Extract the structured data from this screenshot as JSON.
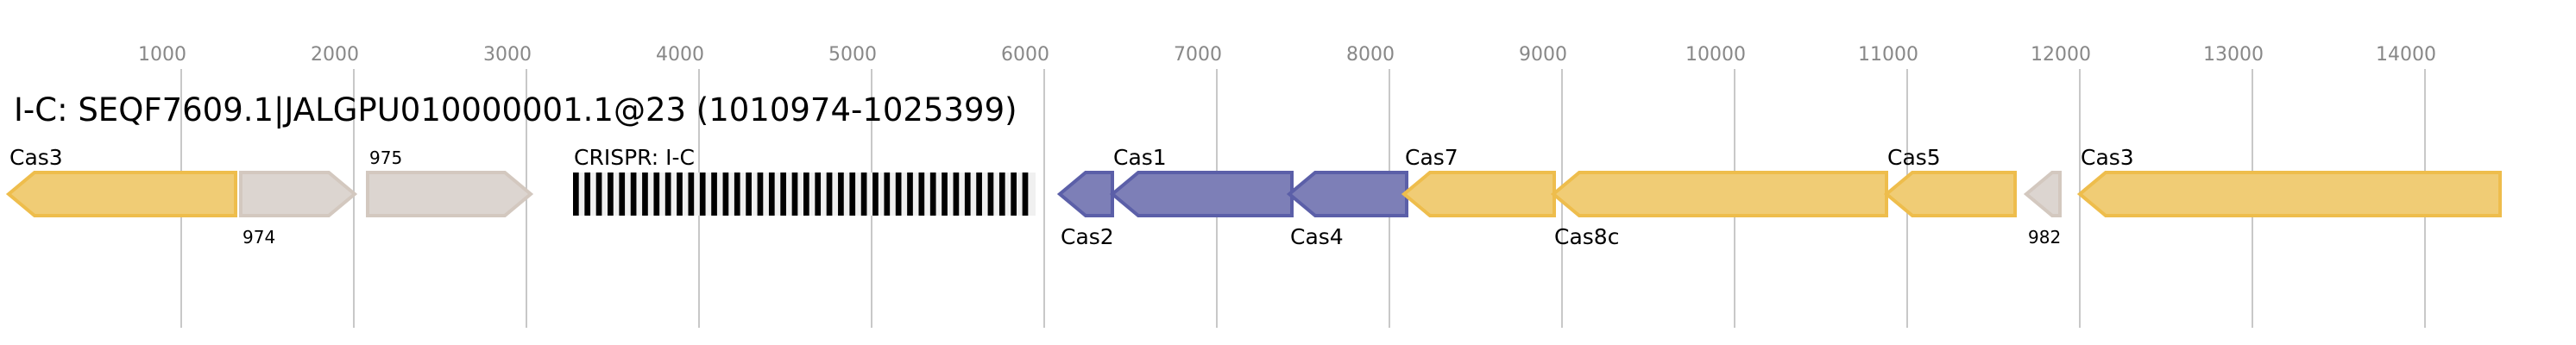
{
  "title": "I-C: SEQF7609.1|JALGPU010000001.1@23 (1010974-1025399)",
  "chart_data": {
    "type": "gene-map",
    "axis_ticks": [
      1000,
      2000,
      3000,
      4000,
      5000,
      6000,
      7000,
      8000,
      9000,
      10000,
      11000,
      12000,
      13000,
      14000
    ],
    "grid": true,
    "colors": {
      "cas": {
        "fill": "#f0cc75",
        "stroke": "#eebd4c"
      },
      "cas-adapt": {
        "fill": "#7d7fb7",
        "stroke": "#5b5fa8"
      },
      "other": {
        "fill": "#dcd5d0",
        "stroke": "#d3c8bf"
      },
      "crispr": {
        "fill": "#000000",
        "bg": "#f0f0f0"
      }
    },
    "features": [
      {
        "label": "Cas3",
        "start": 0,
        "end": 1315,
        "strand": "-",
        "kind": "cas",
        "label_pos": "above"
      },
      {
        "label": "974",
        "start": 1345,
        "end": 2005,
        "strand": "+",
        "kind": "other",
        "label_pos": "below"
      },
      {
        "label": "975",
        "start": 2080,
        "end": 3025,
        "strand": "+",
        "kind": "other",
        "label_pos": "above"
      },
      {
        "label": "CRISPR: I-C",
        "start": 3270,
        "end": 5950,
        "strand": "",
        "kind": "crispr",
        "label_pos": "above"
      },
      {
        "label": "Cas2",
        "start": 6090,
        "end": 6395,
        "strand": "-",
        "kind": "cas-adapt",
        "label_pos": "below"
      },
      {
        "label": "Cas1",
        "start": 6395,
        "end": 7435,
        "strand": "-",
        "kind": "cas-adapt",
        "label_pos": "above"
      },
      {
        "label": "Cas4",
        "start": 7420,
        "end": 8100,
        "strand": "-",
        "kind": "cas-adapt",
        "label_pos": "below"
      },
      {
        "label": "Cas7",
        "start": 8085,
        "end": 8955,
        "strand": "-",
        "kind": "cas",
        "label_pos": "above"
      },
      {
        "label": "Cas8c",
        "start": 8950,
        "end": 10880,
        "strand": "-",
        "kind": "cas",
        "label_pos": "below"
      },
      {
        "label": "Cas5",
        "start": 10880,
        "end": 11625,
        "strand": "-",
        "kind": "cas",
        "label_pos": "above"
      },
      {
        "label": "982",
        "start": 11690,
        "end": 11885,
        "strand": "-",
        "kind": "other",
        "label_pos": "below"
      },
      {
        "label": "Cas3",
        "start": 12000,
        "end": 14435,
        "strand": "-",
        "kind": "cas",
        "label_pos": "above"
      }
    ]
  }
}
